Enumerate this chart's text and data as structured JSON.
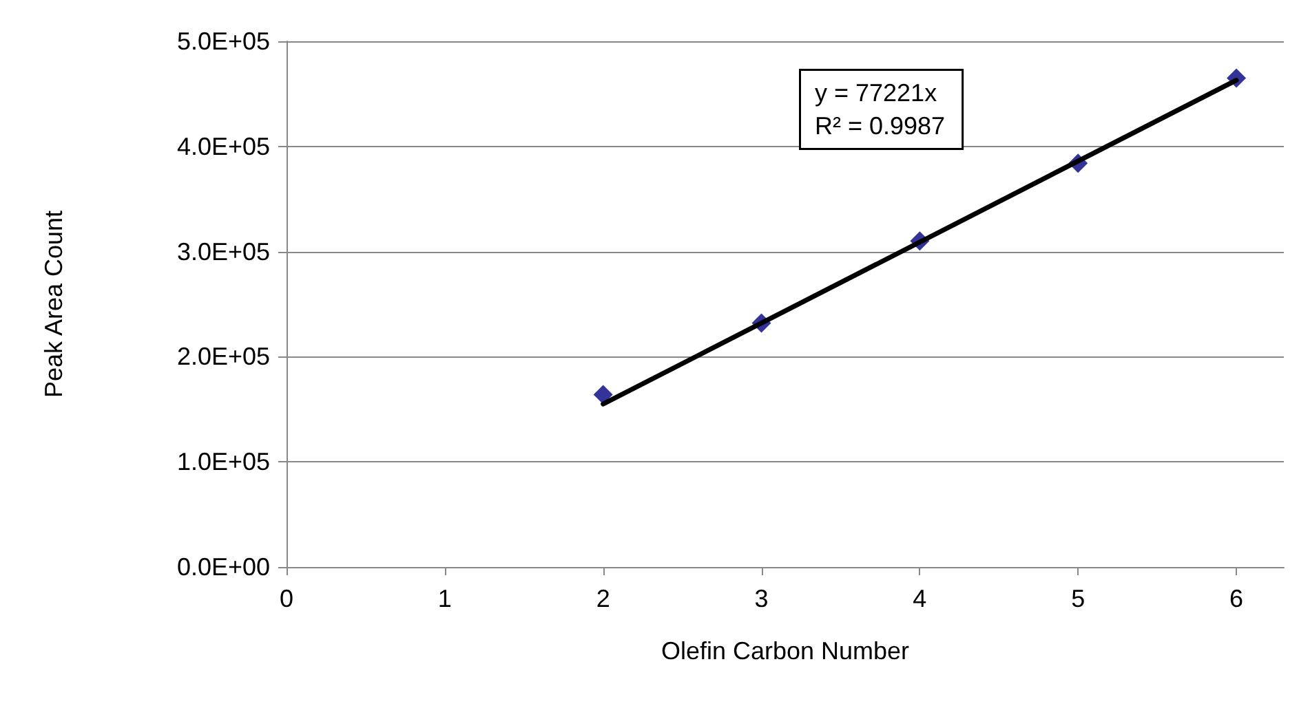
{
  "chart_data": {
    "type": "scatter",
    "xlabel": "Olefin Carbon Number",
    "ylabel": "Peak Area Count",
    "series": [
      {
        "color": "#000080",
        "marker": "diamond",
        "x": [
          2,
          3,
          4,
          5,
          6
        ],
        "values": [
          164000,
          232000,
          310000,
          384000,
          465000
        ]
      },
      {
        "type": "line",
        "color": "#000000",
        "marker": "none",
        "line_style": "solid",
        "x": [
          2,
          6
        ],
        "values": [
          155000,
          463000
        ]
      }
    ],
    "annotations": [
      "y = 77221x",
      "R² = 0.9987"
    ],
    "xlim": [
      0,
      6.3
    ],
    "xticks": [
      0,
      1,
      2,
      3,
      4,
      5,
      6
    ],
    "ylim": [
      0,
      500000
    ],
    "yticks": [
      {
        "value": 0,
        "label": "0.0E+00"
      },
      {
        "value": 100000,
        "label": "1.0E+05"
      },
      {
        "value": 200000,
        "label": "2.0E+05"
      },
      {
        "value": 300000,
        "label": "3.0E+05"
      },
      {
        "value": 400000,
        "label": "4.0E+05"
      },
      {
        "value": 500000,
        "label": "5.0E+05"
      }
    ],
    "grid": "y"
  }
}
